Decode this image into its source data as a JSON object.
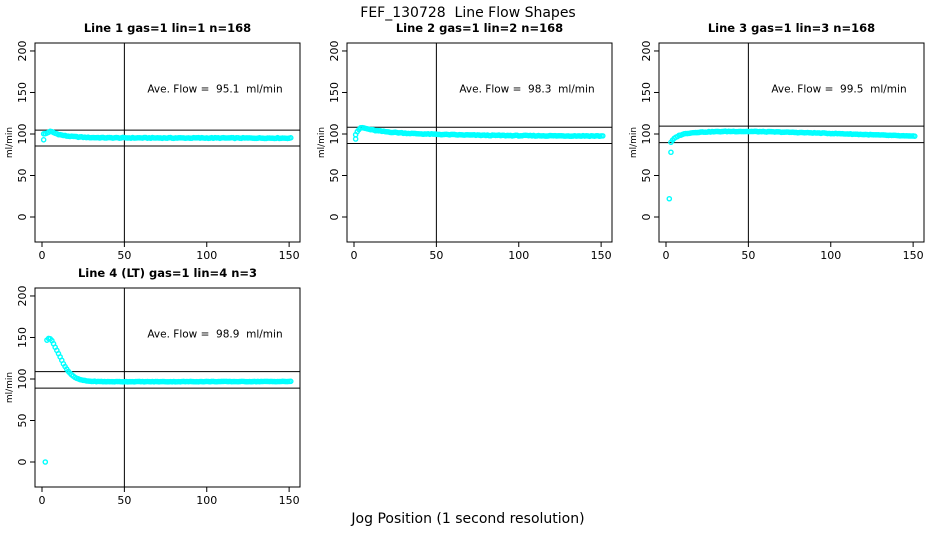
{
  "title": "FEF_130728  Line Flow Shapes",
  "xlabel": "Jog Position (1 second resolution)",
  "ylabel": "ml/min",
  "colors": {
    "points": "#00FFFF",
    "lines": "#000000",
    "background": "#FFFFFF"
  },
  "chart_data": [
    {
      "type": "scatter",
      "title": "Line 1 gas=1 lin=1 n=168",
      "annotation": "Ave. Flow =  95.1  ml/min",
      "ave_flow": 95.1,
      "n": 168,
      "xlabel": "Jog Position (1 second resolution)",
      "ylabel": "ml/min",
      "xticks": [
        0,
        50,
        100,
        150
      ],
      "yticks": [
        0,
        50,
        100,
        150,
        200
      ],
      "xlim": [
        -4.25,
        156.6
      ],
      "ylim": [
        -30.1,
        209.6
      ],
      "vline_x": 50,
      "hlines": [
        104.6,
        85.6
      ],
      "x_start": 1,
      "x_end": 151,
      "jitter": 0.9,
      "outliers": [
        [
          1,
          93
        ]
      ],
      "anchors": [
        [
          1,
          100
        ],
        [
          2,
          100.3
        ],
        [
          3,
          101.2
        ],
        [
          4,
          102.3
        ],
        [
          5,
          103
        ],
        [
          6,
          102.6
        ],
        [
          7,
          101.8
        ],
        [
          8,
          100.9
        ],
        [
          10,
          99.6
        ],
        [
          12,
          98.6
        ],
        [
          15,
          97.6
        ],
        [
          18,
          97
        ],
        [
          22,
          96.4
        ],
        [
          26,
          96
        ],
        [
          30,
          95.7
        ],
        [
          40,
          95.4
        ],
        [
          60,
          95.3
        ],
        [
          80,
          95.2
        ],
        [
          100,
          95.2
        ],
        [
          120,
          95.1
        ],
        [
          140,
          95.1
        ],
        [
          151,
          95
        ]
      ]
    },
    {
      "type": "scatter",
      "title": "Line 2 gas=1 lin=2 n=168",
      "annotation": "Ave. Flow =  98.3  ml/min",
      "ave_flow": 98.3,
      "n": 168,
      "xlabel": "Jog Position (1 second resolution)",
      "ylabel": "ml/min",
      "xticks": [
        0,
        50,
        100,
        150
      ],
      "yticks": [
        0,
        50,
        100,
        150,
        200
      ],
      "xlim": [
        -4.25,
        156.6
      ],
      "ylim": [
        -30.1,
        209.6
      ],
      "vline_x": 50,
      "hlines": [
        108.1,
        88.5
      ],
      "x_start": 1,
      "x_end": 151,
      "jitter": 0.9,
      "outliers": [
        [
          1,
          94
        ]
      ],
      "anchors": [
        [
          1,
          99.5
        ],
        [
          2,
          103
        ],
        [
          3,
          105.5
        ],
        [
          4,
          107
        ],
        [
          5,
          107.5
        ],
        [
          6,
          107.2
        ],
        [
          8,
          106.2
        ],
        [
          10,
          105.3
        ],
        [
          13,
          104.2
        ],
        [
          16,
          103.4
        ],
        [
          20,
          102.6
        ],
        [
          25,
          101.8
        ],
        [
          30,
          101.2
        ],
        [
          35,
          100.6
        ],
        [
          40,
          100.2
        ],
        [
          50,
          99.6
        ],
        [
          60,
          99.1
        ],
        [
          70,
          98.7
        ],
        [
          80,
          98.4
        ],
        [
          90,
          98.2
        ],
        [
          100,
          98
        ],
        [
          120,
          97.8
        ],
        [
          140,
          97.7
        ],
        [
          151,
          97.6
        ]
      ]
    },
    {
      "type": "scatter",
      "title": "Line 3 gas=1 lin=3 n=168",
      "annotation": "Ave. Flow =  99.5  ml/min",
      "ave_flow": 99.5,
      "n": 168,
      "xlabel": "Jog Position (1 second resolution)",
      "ylabel": "ml/min",
      "xticks": [
        0,
        50,
        100,
        150
      ],
      "yticks": [
        0,
        50,
        100,
        150,
        200
      ],
      "xlim": [
        -4.25,
        156.6
      ],
      "ylim": [
        -30.1,
        209.6
      ],
      "vline_x": 50,
      "hlines": [
        109.5,
        89.6
      ],
      "x_start": 4,
      "x_end": 151,
      "jitter": 0.7,
      "outliers": [
        [
          2,
          22
        ],
        [
          3,
          78
        ],
        [
          3,
          90
        ]
      ],
      "anchors": [
        [
          4,
          92.5
        ],
        [
          5,
          94.5
        ],
        [
          6,
          96
        ],
        [
          7,
          97.2
        ],
        [
          8,
          98.2
        ],
        [
          10,
          99.6
        ],
        [
          12,
          100.5
        ],
        [
          15,
          101.3
        ],
        [
          18,
          101.9
        ],
        [
          22,
          102.3
        ],
        [
          26,
          102.6
        ],
        [
          30,
          102.8
        ],
        [
          35,
          103
        ],
        [
          40,
          103.1
        ],
        [
          45,
          103.1
        ],
        [
          50,
          103
        ],
        [
          55,
          102.9
        ],
        [
          60,
          102.7
        ],
        [
          70,
          102.3
        ],
        [
          80,
          101.8
        ],
        [
          90,
          101.3
        ],
        [
          100,
          100.7
        ],
        [
          110,
          100.1
        ],
        [
          120,
          99.4
        ],
        [
          130,
          98.7
        ],
        [
          140,
          98
        ],
        [
          151,
          97.2
        ]
      ]
    },
    {
      "type": "scatter",
      "title": "Line 4 (LT) gas=1 lin=4 n=3",
      "annotation": "Ave. Flow =  98.9  ml/min",
      "ave_flow": 98.9,
      "n": 3,
      "xlabel": "Jog Position (1 second resolution)",
      "ylabel": "ml/min",
      "xticks": [
        0,
        50,
        100,
        150
      ],
      "yticks": [
        0,
        50,
        100,
        150,
        200
      ],
      "xlim": [
        -4.25,
        156.6
      ],
      "ylim": [
        -30.1,
        209.6
      ],
      "vline_x": 50,
      "hlines": [
        108.8,
        89.0
      ],
      "x_start": 3,
      "x_end": 151,
      "jitter": 0.5,
      "outliers": [
        [
          2,
          0
        ]
      ],
      "anchors": [
        [
          3,
          147
        ],
        [
          4,
          149
        ],
        [
          5,
          148.5
        ],
        [
          6,
          146
        ],
        [
          7,
          142.5
        ],
        [
          8,
          138.5
        ],
        [
          9,
          134.5
        ],
        [
          10,
          130.5
        ],
        [
          11,
          126.5
        ],
        [
          12,
          122.5
        ],
        [
          13,
          118.5
        ],
        [
          14,
          115
        ],
        [
          15,
          112
        ],
        [
          16,
          109.3
        ],
        [
          17,
          107
        ],
        [
          18,
          105
        ],
        [
          19,
          103.3
        ],
        [
          20,
          101.8
        ],
        [
          22,
          100
        ],
        [
          24,
          98.8
        ],
        [
          26,
          98
        ],
        [
          28,
          97.5
        ],
        [
          30,
          97.2
        ],
        [
          35,
          96.9
        ],
        [
          40,
          96.8
        ],
        [
          60,
          96.8
        ],
        [
          80,
          96.8
        ],
        [
          100,
          96.9
        ],
        [
          120,
          96.9
        ],
        [
          151,
          97
        ]
      ]
    }
  ]
}
